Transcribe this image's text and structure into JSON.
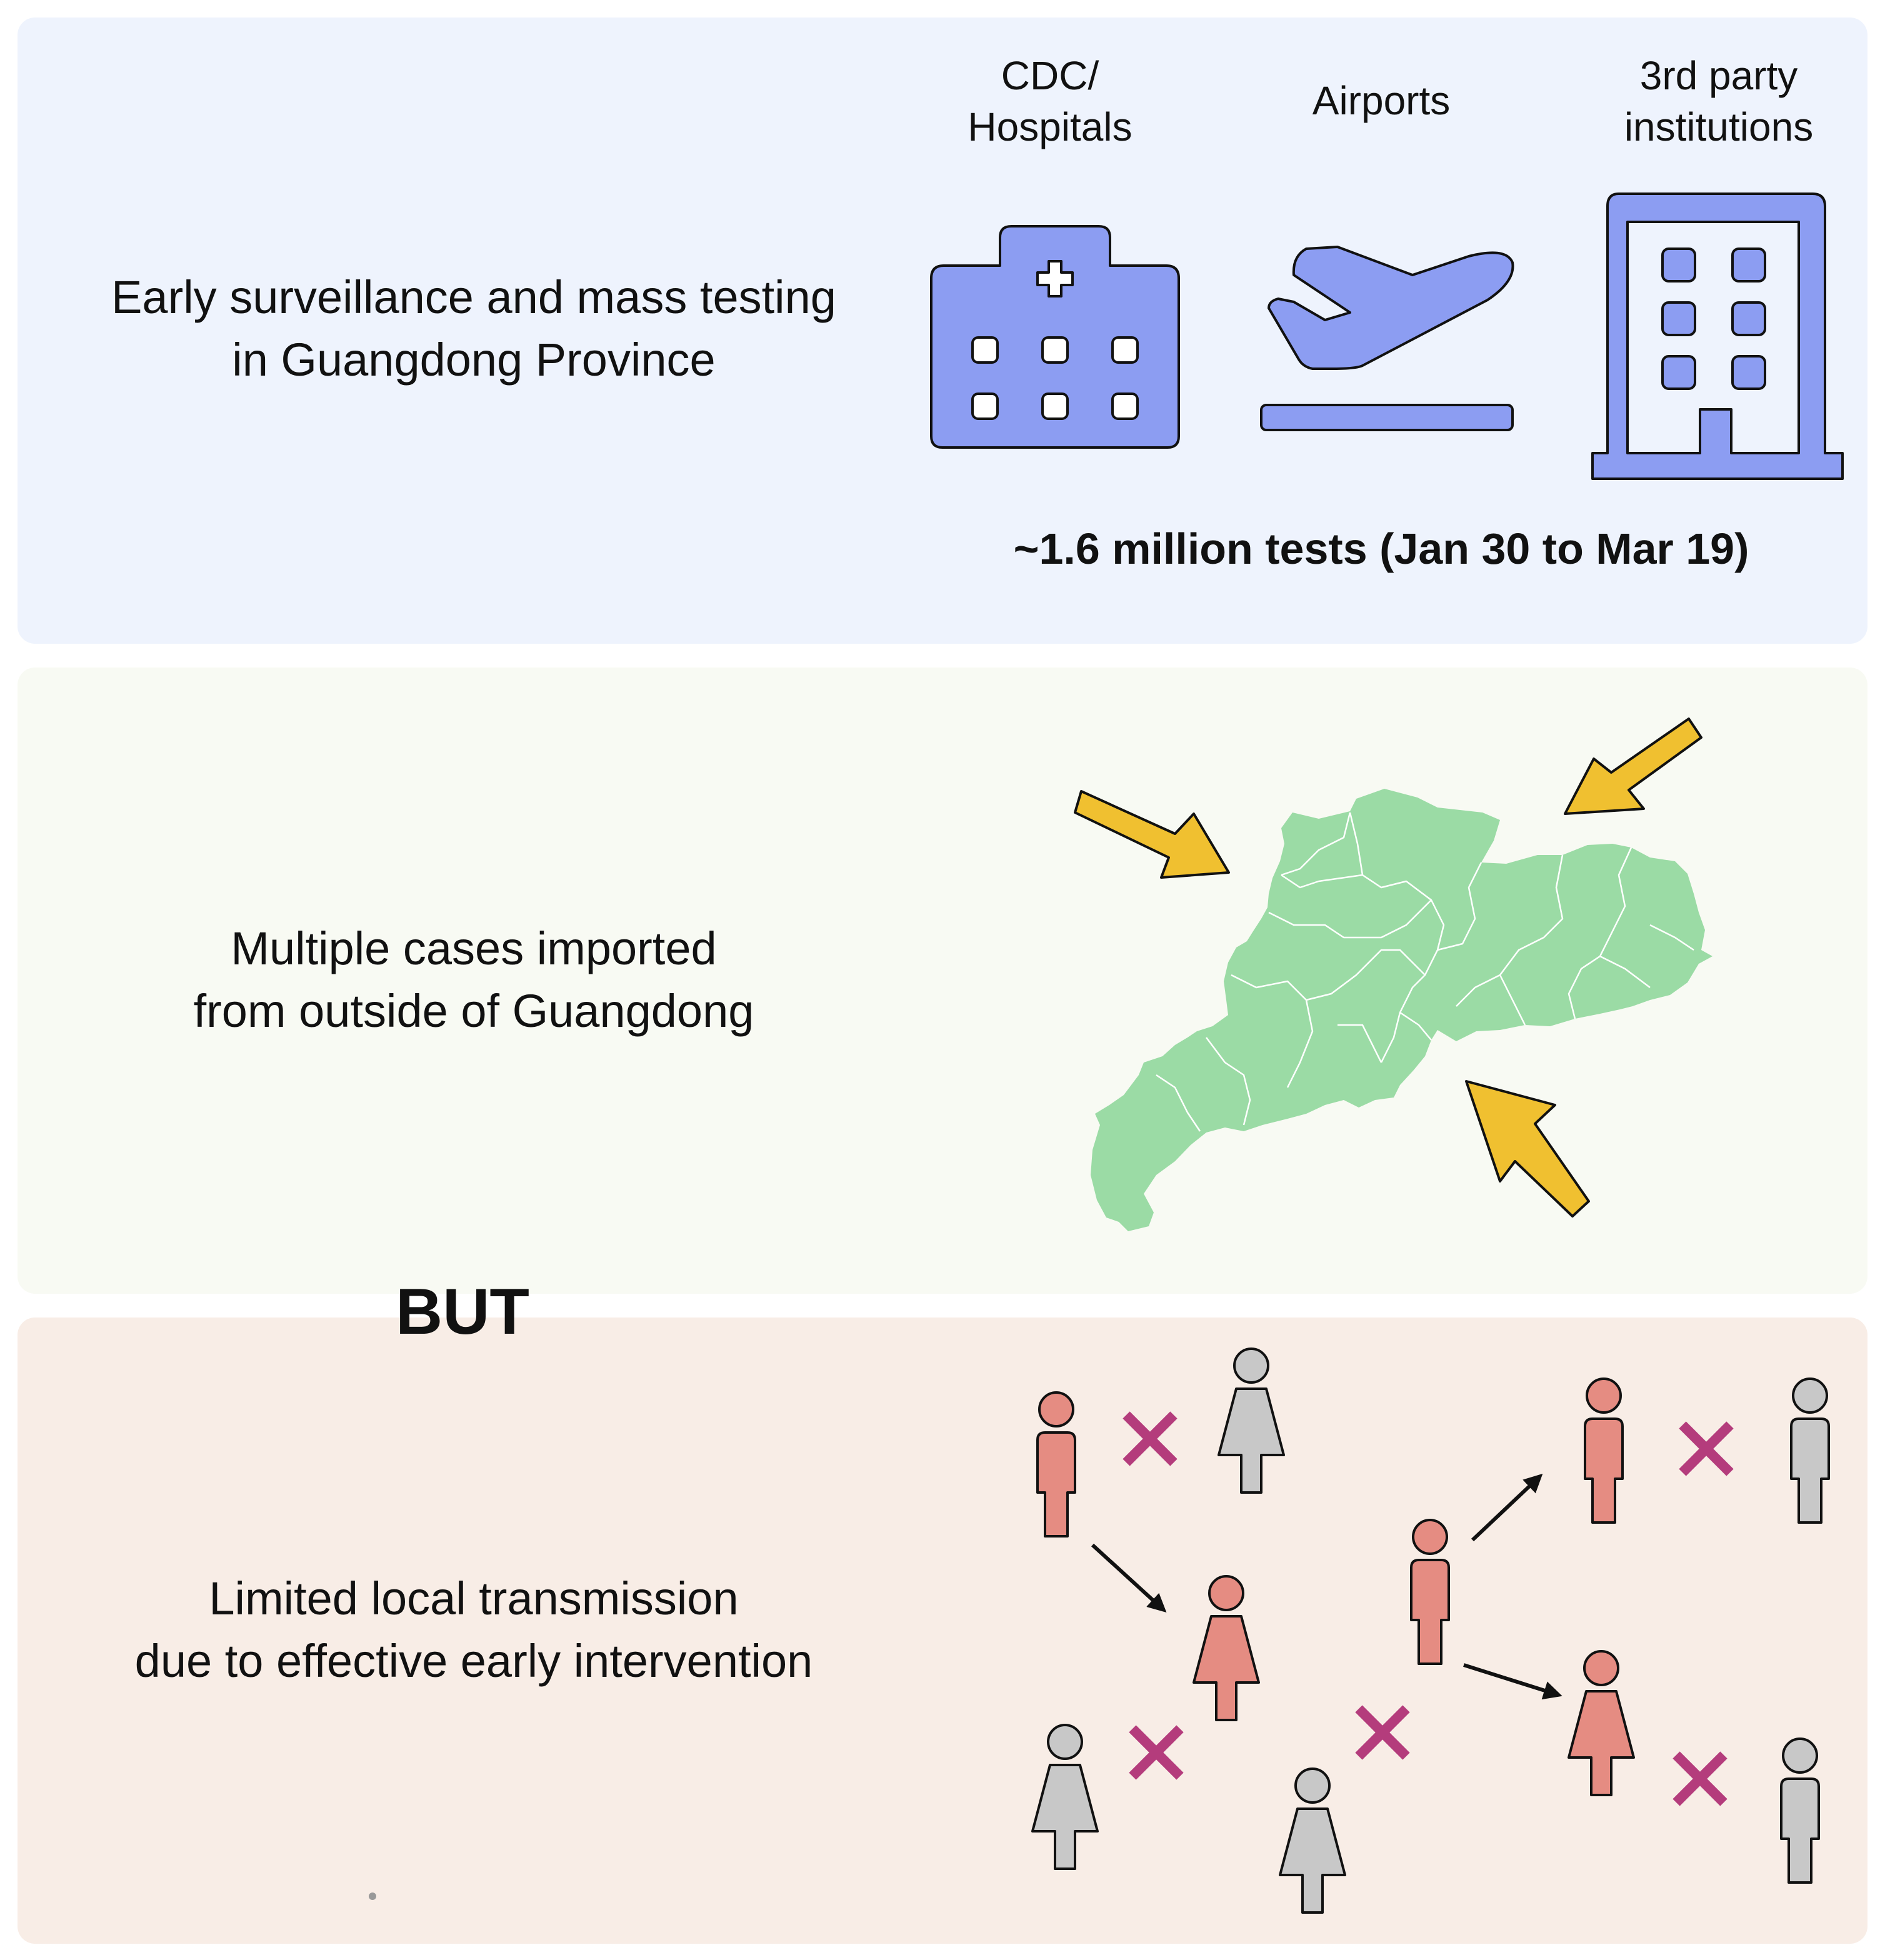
{
  "surveillance": {
    "heading_lines": [
      "Early surveillance and mass testing",
      "in Guangdong Province"
    ],
    "sources": [
      {
        "label_lines": [
          "CDC/",
          "Hospitals"
        ],
        "icon": "hospital-icon"
      },
      {
        "label_lines": [
          "Airports"
        ],
        "icon": "airplane-departure-icon"
      },
      {
        "label_lines": [
          "3rd party",
          "institutions"
        ],
        "icon": "office-building-icon"
      }
    ],
    "tests_summary": "~1.6 million tests (Jan 30 to Mar 19)"
  },
  "importation": {
    "heading_lines": [
      "Multiple cases imported",
      "from outside of Guangdong"
    ],
    "map_icon": "guangdong-map",
    "arrow_icon": "incoming-arrow-icon"
  },
  "connector": {
    "label": "BUT"
  },
  "transmission": {
    "heading_lines": [
      "Limited local transmission",
      "due to effective early intervention"
    ],
    "person_icon": "person-icon",
    "blocked_icon": "cross-icon",
    "spread_icon": "transmission-arrow-icon"
  },
  "colors": {
    "surveillance_panel": "#eef3fd",
    "importation_panel": "#f8faf3",
    "transmission_panel": "#f8ede6",
    "icon_fill": "#8c9df2",
    "map_fill": "#9bdba5",
    "import_arrow": "#f0c030",
    "infected_person": "#e58c82",
    "uninfected_person": "#c8c8c8",
    "blocked_cross": "#b43c7c"
  }
}
